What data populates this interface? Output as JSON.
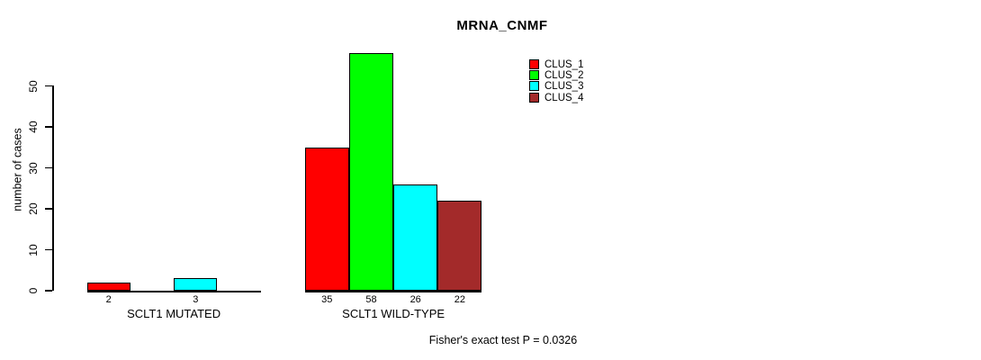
{
  "chart_data": {
    "type": "bar",
    "title": "MRNA_CNMF",
    "ylabel": "number of cases",
    "yticks": [
      0,
      10,
      20,
      30,
      40,
      50
    ],
    "ylim": [
      0,
      58
    ],
    "grid": false,
    "legend_position": "top-right-outside-plot",
    "series": [
      {
        "name": "CLUS_1",
        "color": "#ff0000"
      },
      {
        "name": "CLUS_2",
        "color": "#00ff00"
      },
      {
        "name": "CLUS_3",
        "color": "#00ffff"
      },
      {
        "name": "CLUS_4",
        "color": "#a32a2a"
      }
    ],
    "groups": [
      {
        "label": "SCLT1 MUTATED",
        "values": [
          2,
          0,
          3,
          0
        ]
      },
      {
        "label": "SCLT1 WILD-TYPE",
        "values": [
          35,
          58,
          26,
          22
        ]
      }
    ],
    "bar_value_labels_shown_only_for_nonzero": true,
    "footnote": "Fisher's exact test P = 0.0326"
  }
}
